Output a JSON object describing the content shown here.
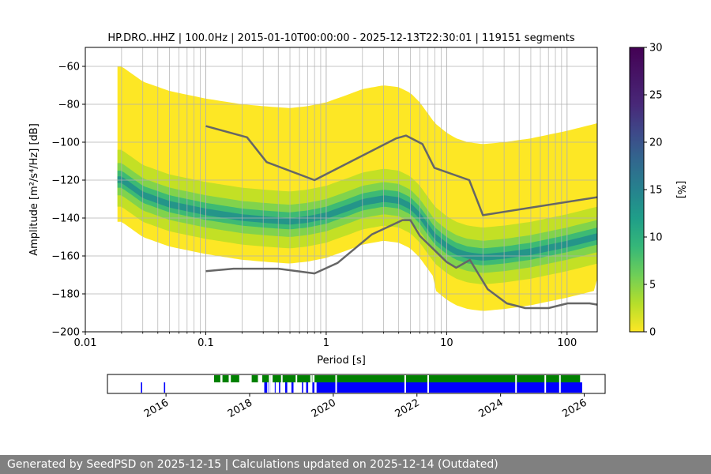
{
  "chart_data": [
    {
      "type": "heatmap",
      "subtype": "probabilistic-power-spectral-density",
      "title": "HP.DRO..HHZ | 100.0Hz | 2015-01-10T00:00:00 - 2025-12-13T22:30:01 | 119151 segments",
      "xlabel": "Period [s]",
      "ylabel": "Amplitude [m²/s⁴/Hz] [dB]",
      "x_scale": "log",
      "xlim": [
        0.01,
        178
      ],
      "ylim": [
        -200,
        -50
      ],
      "x_ticks": [
        0.01,
        0.1,
        1,
        10,
        100
      ],
      "x_tick_labels": [
        "0.01",
        "0.1",
        "1",
        "10",
        "100"
      ],
      "y_ticks": [
        -200,
        -180,
        -160,
        -140,
        -120,
        -100,
        -80,
        -60
      ],
      "y_tick_labels": [
        "−200",
        "−180",
        "−160",
        "−140",
        "−120",
        "−100",
        "−80",
        "−60"
      ],
      "grid": true,
      "colormap": "viridis",
      "colorbar": {
        "label": "[%]",
        "range": [
          0,
          30
        ],
        "ticks": [
          0,
          5,
          10,
          15,
          20,
          25,
          30
        ]
      },
      "mode_curve": {
        "period": [
          0.02,
          0.03,
          0.05,
          0.1,
          0.2,
          0.3,
          0.5,
          0.7,
          1,
          1.5,
          2,
          3,
          4,
          5,
          6,
          7,
          8,
          10,
          12,
          15,
          20,
          30,
          50,
          100,
          178
        ],
        "db": [
          -120,
          -128,
          -133,
          -137,
          -140,
          -141,
          -142,
          -141,
          -139,
          -135,
          -132,
          -130,
          -131,
          -134,
          -139,
          -145,
          -150,
          -155,
          -158,
          -160,
          -161,
          -160,
          -158,
          -154,
          -150
        ]
      },
      "noise_model_high": {
        "period": [
          0.1,
          0.22,
          0.32,
          0.8,
          3.8,
          4.6,
          6.3,
          7.9,
          15.4,
          20,
          354.8
        ],
        "db": [
          -91.5,
          -97.4,
          -110.5,
          -120,
          -98,
          -96.5,
          -101,
          -113.5,
          -120,
          -138.5,
          -126
        ]
      },
      "noise_model_low": {
        "period": [
          0.1,
          0.17,
          0.4,
          0.8,
          1.24,
          2.4,
          4.3,
          5,
          6,
          10,
          12,
          15.6,
          21.9,
          31.6,
          45,
          70,
          101,
          154,
          178
        ],
        "db": [
          -168,
          -166.7,
          -166.7,
          -169.2,
          -163.7,
          -148.6,
          -141.1,
          -141.1,
          -149.4,
          -163.2,
          -166.2,
          -162.1,
          -177.5,
          -185,
          -187.5,
          -187.5,
          -185,
          -185,
          -185.7
        ]
      },
      "line_color": "#666666"
    },
    {
      "type": "timeline",
      "x_ticks": [
        "2016",
        "2018",
        "2020",
        "2022",
        "2024",
        "2026"
      ],
      "series": [
        {
          "color": "#008000",
          "spans": [
            [
              2017.15,
              2017.3
            ],
            [
              2017.35,
              2017.5
            ],
            [
              2017.55,
              2017.75
            ],
            [
              2018.05,
              2018.2
            ],
            [
              2018.3,
              2018.5
            ],
            [
              2018.55,
              2019.5
            ],
            [
              2019.55,
              2025.9
            ]
          ]
        },
        {
          "color": "#0000ff",
          "spans": [
            [
              2015.4,
              2015.43
            ],
            [
              2015.95,
              2015.98
            ],
            [
              2018.35,
              2018.42
            ],
            [
              2018.45,
              2018.5
            ],
            [
              2018.6,
              2018.62
            ],
            [
              2018.7,
              2018.73
            ],
            [
              2018.85,
              2018.9
            ],
            [
              2019.0,
              2019.05
            ],
            [
              2019.25,
              2019.28
            ],
            [
              2019.35,
              2019.4
            ],
            [
              2019.5,
              2019.55
            ],
            [
              2019.6,
              2025.95
            ]
          ]
        }
      ],
      "gaps": [
        2018.46,
        2018.75,
        2019.1,
        2019.45,
        2020.05,
        2021.7,
        2022.25,
        2024.35,
        2025.05,
        2025.4
      ],
      "range": [
        2014.6,
        2026.5
      ]
    }
  ],
  "footer": {
    "text": "Generated by SeedPSD on 2025-12-15 | Calculations updated on 2025-12-14 (Outdated)"
  }
}
